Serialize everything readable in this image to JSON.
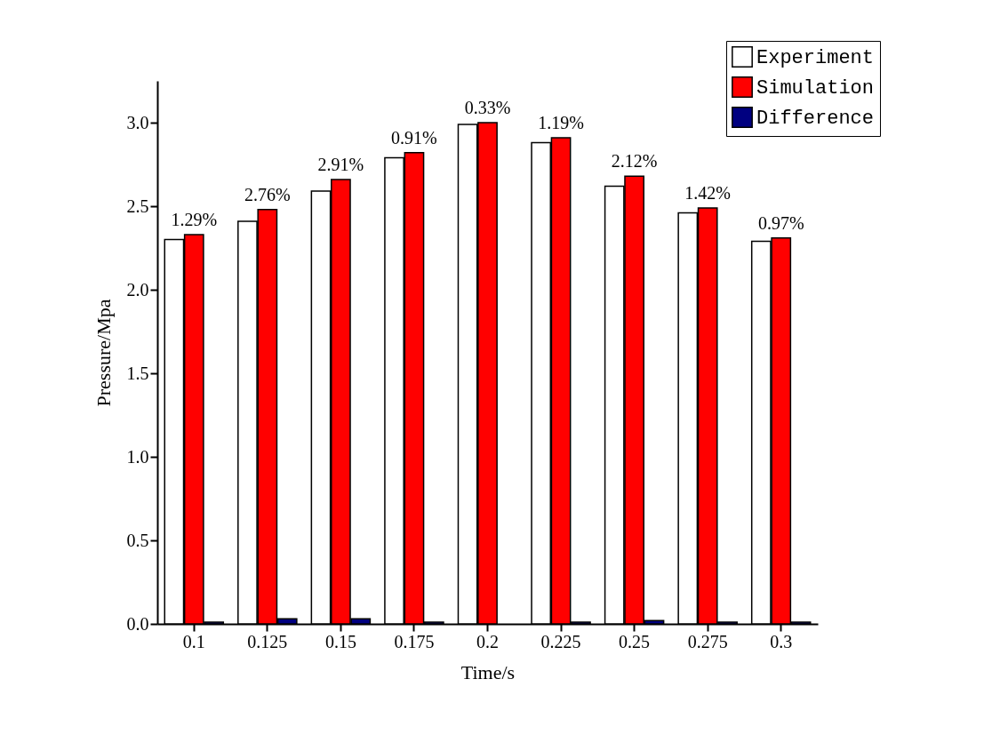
{
  "chart_data": {
    "type": "bar",
    "xlabel": "Time/s",
    "ylabel": "Pressure/Mpa",
    "categories": [
      "0.1",
      "0.125",
      "0.15",
      "0.175",
      "0.2",
      "0.225",
      "0.25",
      "0.275",
      "0.3"
    ],
    "series": [
      {
        "name": "Experiment",
        "color": "#ffffff",
        "values": [
          2.3,
          2.41,
          2.59,
          2.79,
          2.99,
          2.88,
          2.62,
          2.46,
          2.29
        ]
      },
      {
        "name": "Simulation",
        "color": "#ff0000",
        "values": [
          2.33,
          2.48,
          2.66,
          2.82,
          3.0,
          2.91,
          2.68,
          2.49,
          2.31
        ]
      },
      {
        "name": "Difference",
        "color": "#000080",
        "values": [
          0.01,
          0.03,
          0.03,
          0.01,
          0.0,
          0.01,
          0.02,
          0.01,
          0.01
        ]
      }
    ],
    "ylim": [
      0,
      3.25
    ],
    "yticks": [
      {
        "value": 0,
        "label": "0.0"
      },
      0.5,
      {
        "value": 1,
        "label": "1.0"
      },
      1.5,
      {
        "value": 2,
        "label": "2.0"
      },
      2.5,
      {
        "value": 3,
        "label": "3.0"
      }
    ],
    "grid": false,
    "legend": "top right",
    "annotations": [
      {
        "text": "1.29%",
        "x": "0.1",
        "y": 2.33
      },
      {
        "text": "2.76%",
        "x": "0.125",
        "y": 2.48
      },
      {
        "text": "2.91%",
        "x": "0.15",
        "y": 2.66
      },
      {
        "text": "0.91%",
        "x": "0.175",
        "y": 2.82
      },
      {
        "text": "0.33%",
        "x": "0.2",
        "y": 3.0
      },
      {
        "text": "1.19%",
        "x": "0.225",
        "y": 2.91
      },
      {
        "text": "2.12%",
        "x": "0.25",
        "y": 2.68
      },
      {
        "text": "1.42%",
        "x": "0.275",
        "y": 2.49
      },
      {
        "text": "0.97%",
        "x": "0.3",
        "y": 2.31
      }
    ]
  }
}
